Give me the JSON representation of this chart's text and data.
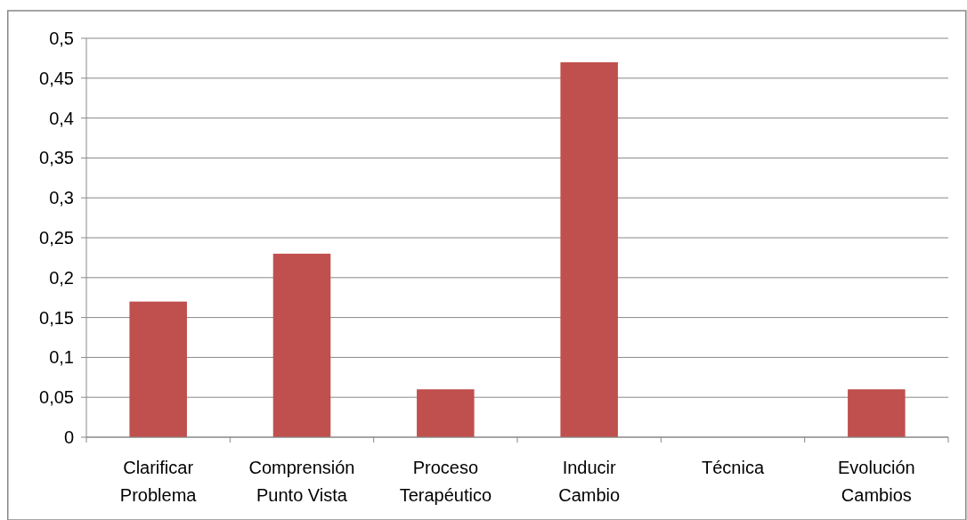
{
  "chart_data": {
    "type": "bar",
    "categories": [
      "Clarificar Problema",
      "Comprensión Punto Vista",
      "Proceso Terapéutico",
      "Inducir Cambio",
      "Técnica",
      "Evolución Cambios"
    ],
    "values": [
      0.17,
      0.23,
      0.06,
      0.47,
      0,
      0.06
    ],
    "color": "#c0504d",
    "ylim": [
      0,
      0.5
    ],
    "yticks": [
      0,
      {
        "value": 0.05,
        "label": "0,05"
      },
      {
        "value": 0.1,
        "label": "0,1"
      },
      {
        "value": 0.15,
        "label": "0,15"
      },
      {
        "value": 0.2,
        "label": "0,2"
      },
      {
        "value": 0.25,
        "label": "0,25"
      },
      {
        "value": 0.3,
        "label": "0,3"
      },
      {
        "value": 0.35,
        "label": "0,35"
      },
      {
        "value": 0.4,
        "label": "0,4"
      },
      {
        "value": 0.45,
        "label": "0,45"
      },
      {
        "value": 0.5,
        "label": "0,5"
      }
    ],
    "grid": "y"
  }
}
